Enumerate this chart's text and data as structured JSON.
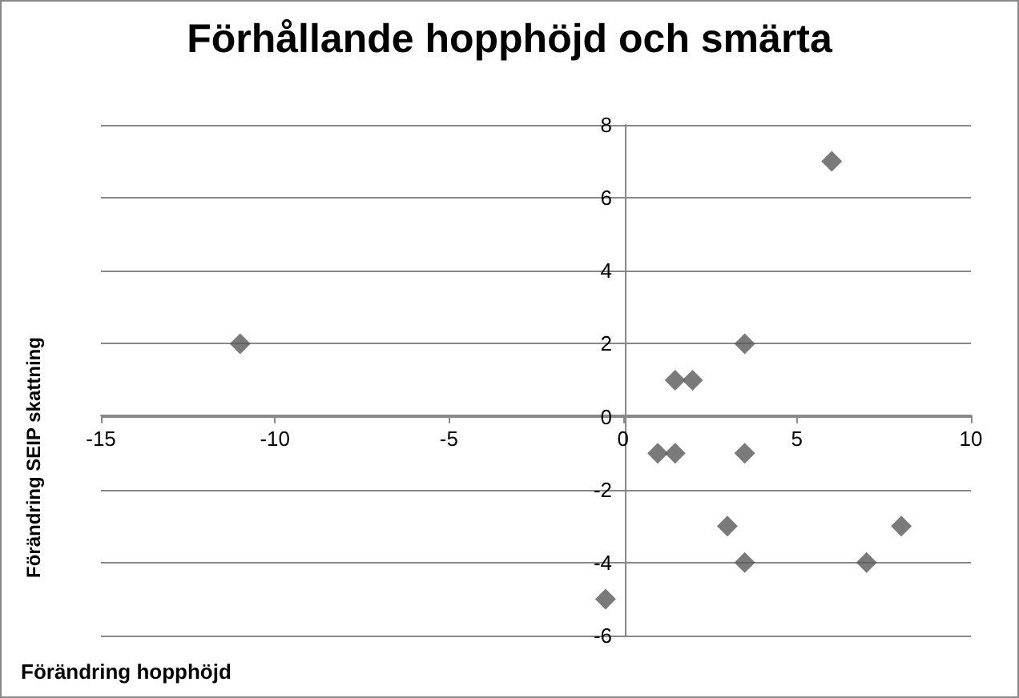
{
  "chart_data": {
    "type": "scatter",
    "title": "Förhållande hopphöjd och smärta",
    "xlabel": "Förändring hopphöjd",
    "ylabel": "Förändring SEIP skattning",
    "x": [
      -11,
      6,
      3.5,
      1.5,
      2,
      1,
      1.5,
      3.5,
      3,
      8,
      3.5,
      7,
      -0.5
    ],
    "series": [
      {
        "color": "#595959",
        "values": [
          2,
          7,
          2,
          1,
          1,
          -1,
          -1,
          -1,
          -3,
          -3,
          -4,
          -4,
          -5
        ]
      }
    ],
    "xlim": [
      -15,
      10
    ],
    "xticks": [
      -15,
      -10,
      -5,
      0,
      5,
      10
    ],
    "ylim": [
      -6,
      8
    ],
    "yticks": [
      -6,
      -4,
      -2,
      0,
      2,
      4,
      6,
      8
    ],
    "grid": "y",
    "marker": "diamond"
  }
}
